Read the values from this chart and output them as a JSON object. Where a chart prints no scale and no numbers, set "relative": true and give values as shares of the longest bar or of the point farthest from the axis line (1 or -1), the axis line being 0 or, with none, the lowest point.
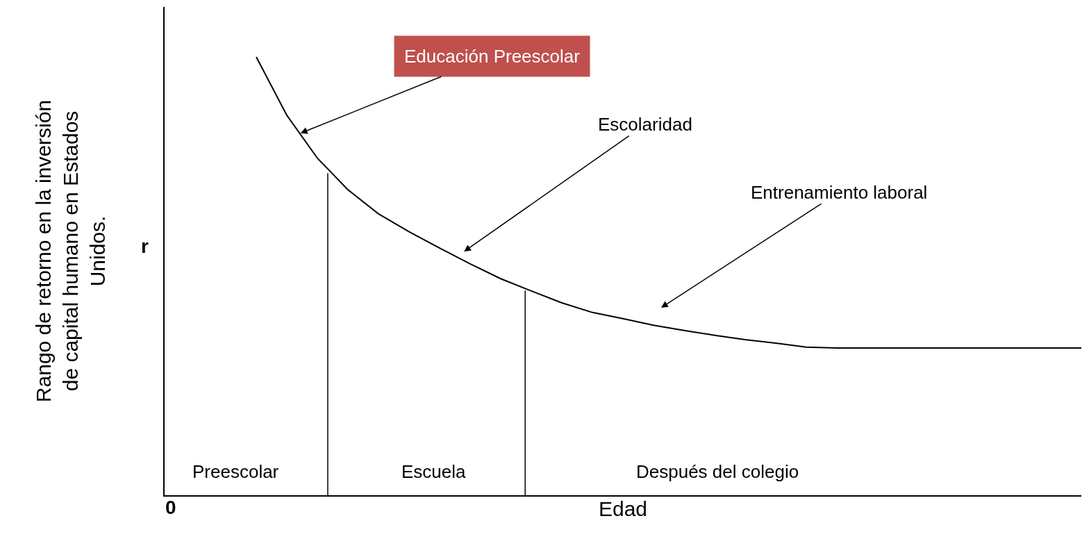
{
  "chart_data": {
    "type": "line",
    "relative": true,
    "xlabel": "Edad",
    "ylabel": "Rango de retorno en la inversión de capital humano en Estados Unidos.",
    "categories": [
      null,
      null,
      null,
      null,
      null,
      null,
      null,
      null,
      null,
      null,
      null,
      null,
      null,
      null,
      null,
      null,
      null,
      null,
      null,
      null,
      null,
      null,
      null,
      null,
      null,
      null,
      null,
      null,
      null,
      null,
      null
    ],
    "series": [
      {
        "color": "#000000",
        "values": [
          null,
          null,
          null,
          1,
          0.867,
          0.769,
          0.697,
          0.642,
          0.601,
          0.564,
          0.528,
          0.494,
          0.466,
          0.439,
          0.417,
          0.403,
          0.388,
          0.376,
          0.365,
          0.355,
          0.347,
          0.338,
          0.336,
          0.336,
          0.336,
          0.336,
          0.336,
          0.336,
          0.336,
          0.336,
          0.336
        ]
      }
    ],
    "annotations": [
      "Educación Preescolar",
      "Escolaridad",
      "Entrenamiento laboral",
      "Preescolar",
      "Escuela",
      "Después del colegio",
      "r",
      "0"
    ],
    "legend": false,
    "marker": "none",
    "line_style": "solid"
  }
}
